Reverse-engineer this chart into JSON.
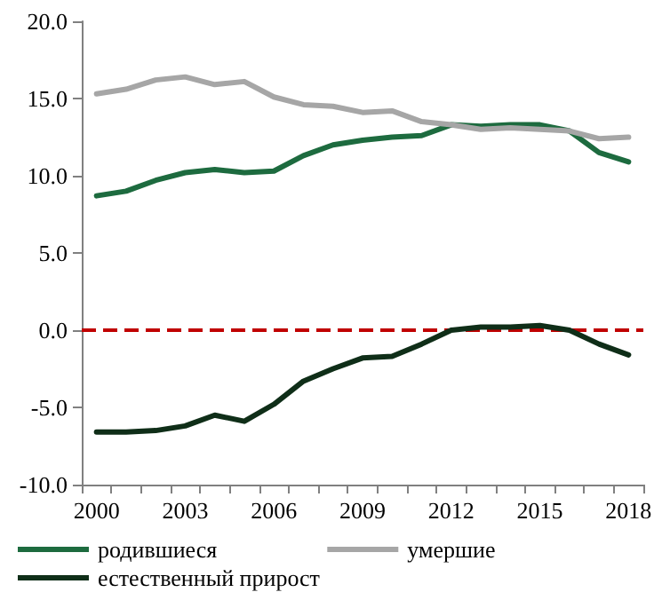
{
  "chart_data": {
    "type": "line",
    "categories": [
      "2000",
      null,
      null,
      "2003",
      null,
      null,
      "2006",
      null,
      null,
      "2009",
      null,
      null,
      "2012",
      null,
      null,
      "2015",
      null,
      null,
      "2018"
    ],
    "series": [
      {
        "name": "родившиеся",
        "color": "#1d6b3f",
        "values": [
          8.7,
          9.0,
          9.7,
          10.2,
          10.4,
          10.2,
          10.3,
          11.3,
          12.0,
          12.3,
          12.5,
          12.6,
          13.3,
          13.2,
          13.3,
          13.3,
          12.9,
          11.5,
          10.9
        ]
      },
      {
        "name": "умершие",
        "color": "#a6a6a6",
        "values": [
          15.3,
          15.6,
          16.2,
          16.4,
          15.9,
          16.1,
          15.1,
          14.6,
          14.5,
          14.1,
          14.2,
          13.5,
          13.3,
          13.0,
          13.1,
          13.0,
          12.9,
          12.4,
          12.5
        ]
      },
      {
        "name": "естественный прирост",
        "color": "#0f2e18",
        "values": [
          -6.6,
          -6.6,
          -6.5,
          -6.2,
          -5.5,
          -5.9,
          -4.8,
          -3.3,
          -2.5,
          -1.8,
          -1.7,
          -0.9,
          0.0,
          0.2,
          0.2,
          0.3,
          0.0,
          -0.9,
          -1.6
        ]
      }
    ],
    "ylim": [
      -10,
      20
    ],
    "yticks": [
      {
        "value": -10,
        "label": "-10.0"
      },
      {
        "value": -5,
        "label": "-5.0"
      },
      {
        "value": 0,
        "label": "0.0"
      },
      {
        "value": 5,
        "label": "5.0"
      },
      {
        "value": 10,
        "label": "10.0"
      },
      {
        "value": 15,
        "label": "15.0"
      },
      {
        "value": 20,
        "label": "20.0"
      }
    ],
    "ref_lines": [
      {
        "axis": "y",
        "value": 0,
        "color": "#c00000",
        "line_style": "dashed"
      }
    ],
    "grid": false,
    "legend": "bottom",
    "marker": "none",
    "line_style": "solid"
  }
}
